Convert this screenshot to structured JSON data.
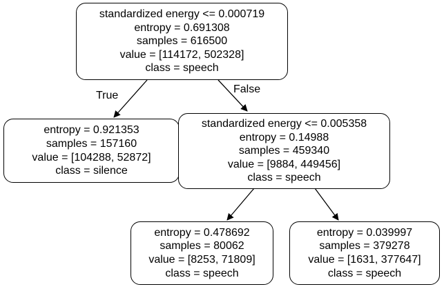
{
  "tree": {
    "root": {
      "lines": [
        "standardized energy <= 0.000719",
        "entropy = 0.691308",
        "samples = 616500",
        "value = [114172, 502328]",
        "class = speech"
      ]
    },
    "left": {
      "lines": [
        "entropy = 0.921353",
        "samples = 157160",
        "value = [104288, 52872]",
        "class = silence"
      ]
    },
    "right": {
      "lines": [
        "standardized energy <= 0.005358",
        "entropy = 0.14988",
        "samples = 459340",
        "value = [9884, 449456]",
        "class = speech"
      ]
    },
    "right_left": {
      "lines": [
        "entropy = 0.478692",
        "samples = 80062",
        "value = [8253, 71809]",
        "class = speech"
      ]
    },
    "right_right": {
      "lines": [
        "entropy = 0.039997",
        "samples = 379278",
        "value = [1631, 377647]",
        "class = speech"
      ]
    }
  },
  "edge_labels": {
    "true_label": "True",
    "false_label": "False"
  }
}
